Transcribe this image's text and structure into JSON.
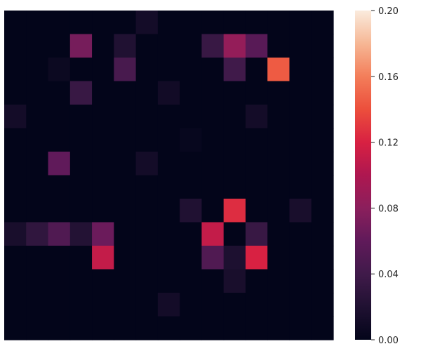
{
  "chart_data": {
    "type": "heatmap",
    "title": "",
    "xlabel": "",
    "ylabel": "",
    "rows": 14,
    "cols": 15,
    "values": [
      [
        0,
        0,
        0,
        0,
        0,
        0,
        0.012,
        0,
        0,
        0,
        0,
        0,
        0,
        0,
        0
      ],
      [
        0,
        0,
        0,
        0.07,
        0,
        0.02,
        0,
        0,
        0,
        0.035,
        0.085,
        0.055,
        0,
        0,
        0
      ],
      [
        0,
        0,
        0.006,
        0,
        0,
        0.045,
        0,
        0,
        0,
        0,
        0.04,
        0,
        0.145,
        0,
        0
      ],
      [
        0,
        0,
        0,
        0.035,
        0,
        0,
        0,
        0.01,
        0,
        0,
        0,
        0,
        0,
        0,
        0
      ],
      [
        0.012,
        0,
        0,
        0,
        0,
        0,
        0,
        0,
        0,
        0,
        0,
        0.012,
        0,
        0,
        0
      ],
      [
        0,
        0,
        0,
        0,
        0,
        0,
        0,
        0,
        0.003,
        0,
        0,
        0,
        0,
        0,
        0
      ],
      [
        0,
        0,
        0.06,
        0,
        0,
        0,
        0.012,
        0,
        0,
        0,
        0,
        0,
        0,
        0,
        0
      ],
      [
        0,
        0,
        0,
        0,
        0,
        0,
        0,
        0,
        0,
        0,
        0,
        0,
        0,
        0,
        0
      ],
      [
        0,
        0,
        0,
        0,
        0,
        0,
        0,
        0,
        0.02,
        0,
        0.125,
        0,
        0,
        0.015,
        0
      ],
      [
        0.015,
        0.03,
        0.05,
        0.022,
        0.065,
        0,
        0,
        0,
        0,
        0.11,
        0,
        0.035,
        0,
        0,
        0
      ],
      [
        0,
        0,
        0,
        0,
        0.11,
        0,
        0,
        0,
        0,
        0.05,
        0.018,
        0.12,
        0,
        0,
        0
      ],
      [
        0,
        0,
        0,
        0,
        0,
        0,
        0,
        0,
        0,
        0,
        0.015,
        0,
        0,
        0,
        0
      ],
      [
        0,
        0,
        0,
        0,
        0,
        0,
        0,
        0.012,
        0,
        0,
        0,
        0,
        0,
        0,
        0
      ],
      [
        0,
        0,
        0,
        0,
        0,
        0,
        0,
        0,
        0,
        0,
        0,
        0,
        0,
        0,
        0
      ]
    ],
    "vmin": 0,
    "vmax": 0.2,
    "colorbar": {
      "ticks": [
        0.0,
        0.04,
        0.08,
        0.12,
        0.16,
        0.2
      ],
      "tick_labels": [
        "0.00",
        "0.04",
        "0.08",
        "0.12",
        "0.16",
        "0.20"
      ]
    },
    "colormap": "rocket",
    "grid": false,
    "xticks_visible": false,
    "yticks_visible": false
  }
}
